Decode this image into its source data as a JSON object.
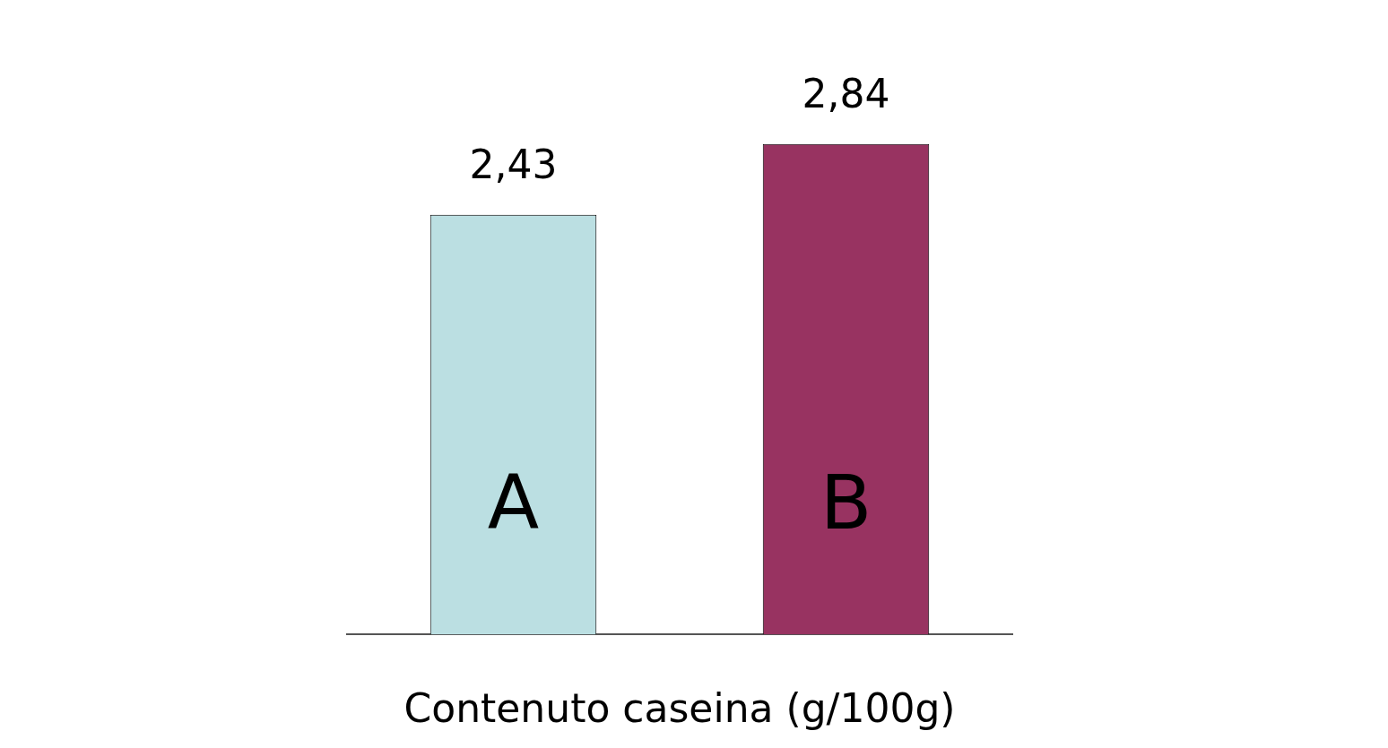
{
  "chart_data": {
    "type": "bar",
    "xlabel": "Contenuto caseina (g/100g)",
    "categories": [
      "A",
      "B"
    ],
    "values": [
      2.43,
      2.84
    ],
    "colors": [
      "#bbdfe2",
      "#983361"
    ],
    "value_labels": [
      "2,43",
      "2,84"
    ],
    "grid": false,
    "legend": false
  }
}
